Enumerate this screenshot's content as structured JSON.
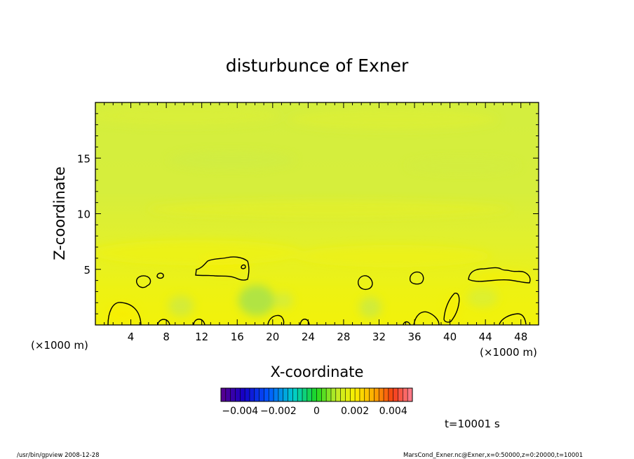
{
  "chart_data": {
    "type": "heatmap",
    "title": "disturbunce of Exner",
    "xlabel": "X-coordinate",
    "ylabel": "Z-coordinate",
    "x_unit": "(×1000 m)",
    "x_unit_left": "(×1000 m)",
    "xlim": [
      0,
      50
    ],
    "ylim": [
      0,
      20
    ],
    "x_ticks": [
      4,
      8,
      12,
      16,
      20,
      24,
      28,
      32,
      36,
      40,
      44,
      48
    ],
    "y_ticks": [
      5,
      10,
      15
    ],
    "colorbar": {
      "range": [
        -0.005,
        0.005
      ],
      "tick_values": [
        -0.004,
        -0.002,
        0,
        0.002,
        0.004
      ],
      "tick_labels": [
        "−0.004",
        "−0.002",
        "0",
        "0.002",
        "0.004"
      ]
    },
    "contour_level": 0.001,
    "contour_regions": [
      {
        "x": [
          0.8,
          5.2
        ],
        "z": [
          0,
          2.0
        ]
      },
      {
        "x": [
          4.5,
          6.3
        ],
        "z": [
          3.2,
          4.6
        ]
      },
      {
        "x": [
          7.0,
          7.8
        ],
        "z": [
          4.0,
          4.8
        ]
      },
      {
        "x": [
          6.8,
          9.5
        ],
        "z": [
          0,
          0.8
        ]
      },
      {
        "x": [
          11.0,
          12.5
        ],
        "z": [
          0,
          0.8
        ]
      },
      {
        "x": [
          11.3,
          17.3
        ],
        "z": [
          4.2,
          6.0
        ]
      },
      {
        "x": [
          19.4,
          21.0
        ],
        "z": [
          0,
          1.0
        ]
      },
      {
        "x": [
          23.0,
          24.2
        ],
        "z": [
          0,
          0.8
        ]
      },
      {
        "x": [
          29.5,
          31.3
        ],
        "z": [
          3.0,
          4.5
        ]
      },
      {
        "x": [
          35.0,
          35.8
        ],
        "z": [
          0,
          0.4
        ]
      },
      {
        "x": [
          35.7,
          38.8
        ],
        "z": [
          0,
          1.4
        ]
      },
      {
        "x": [
          35.5,
          37.2
        ],
        "z": [
          3.7,
          4.8
        ]
      },
      {
        "x": [
          39.3,
          40.8
        ],
        "z": [
          0,
          2.8
        ]
      },
      {
        "x": [
          42.3,
          49.7
        ],
        "z": [
          3.7,
          5.2
        ]
      },
      {
        "x": [
          46.5,
          49.3
        ],
        "z": [
          0,
          1.0
        ]
      }
    ],
    "time_label": "t=10001 s",
    "footer_left": "/usr/bin/gpview  2008-12-28",
    "footer_right": "MarsCond_Exner.nc@Exner,x=0:50000,z=0:20000,t=10001"
  }
}
